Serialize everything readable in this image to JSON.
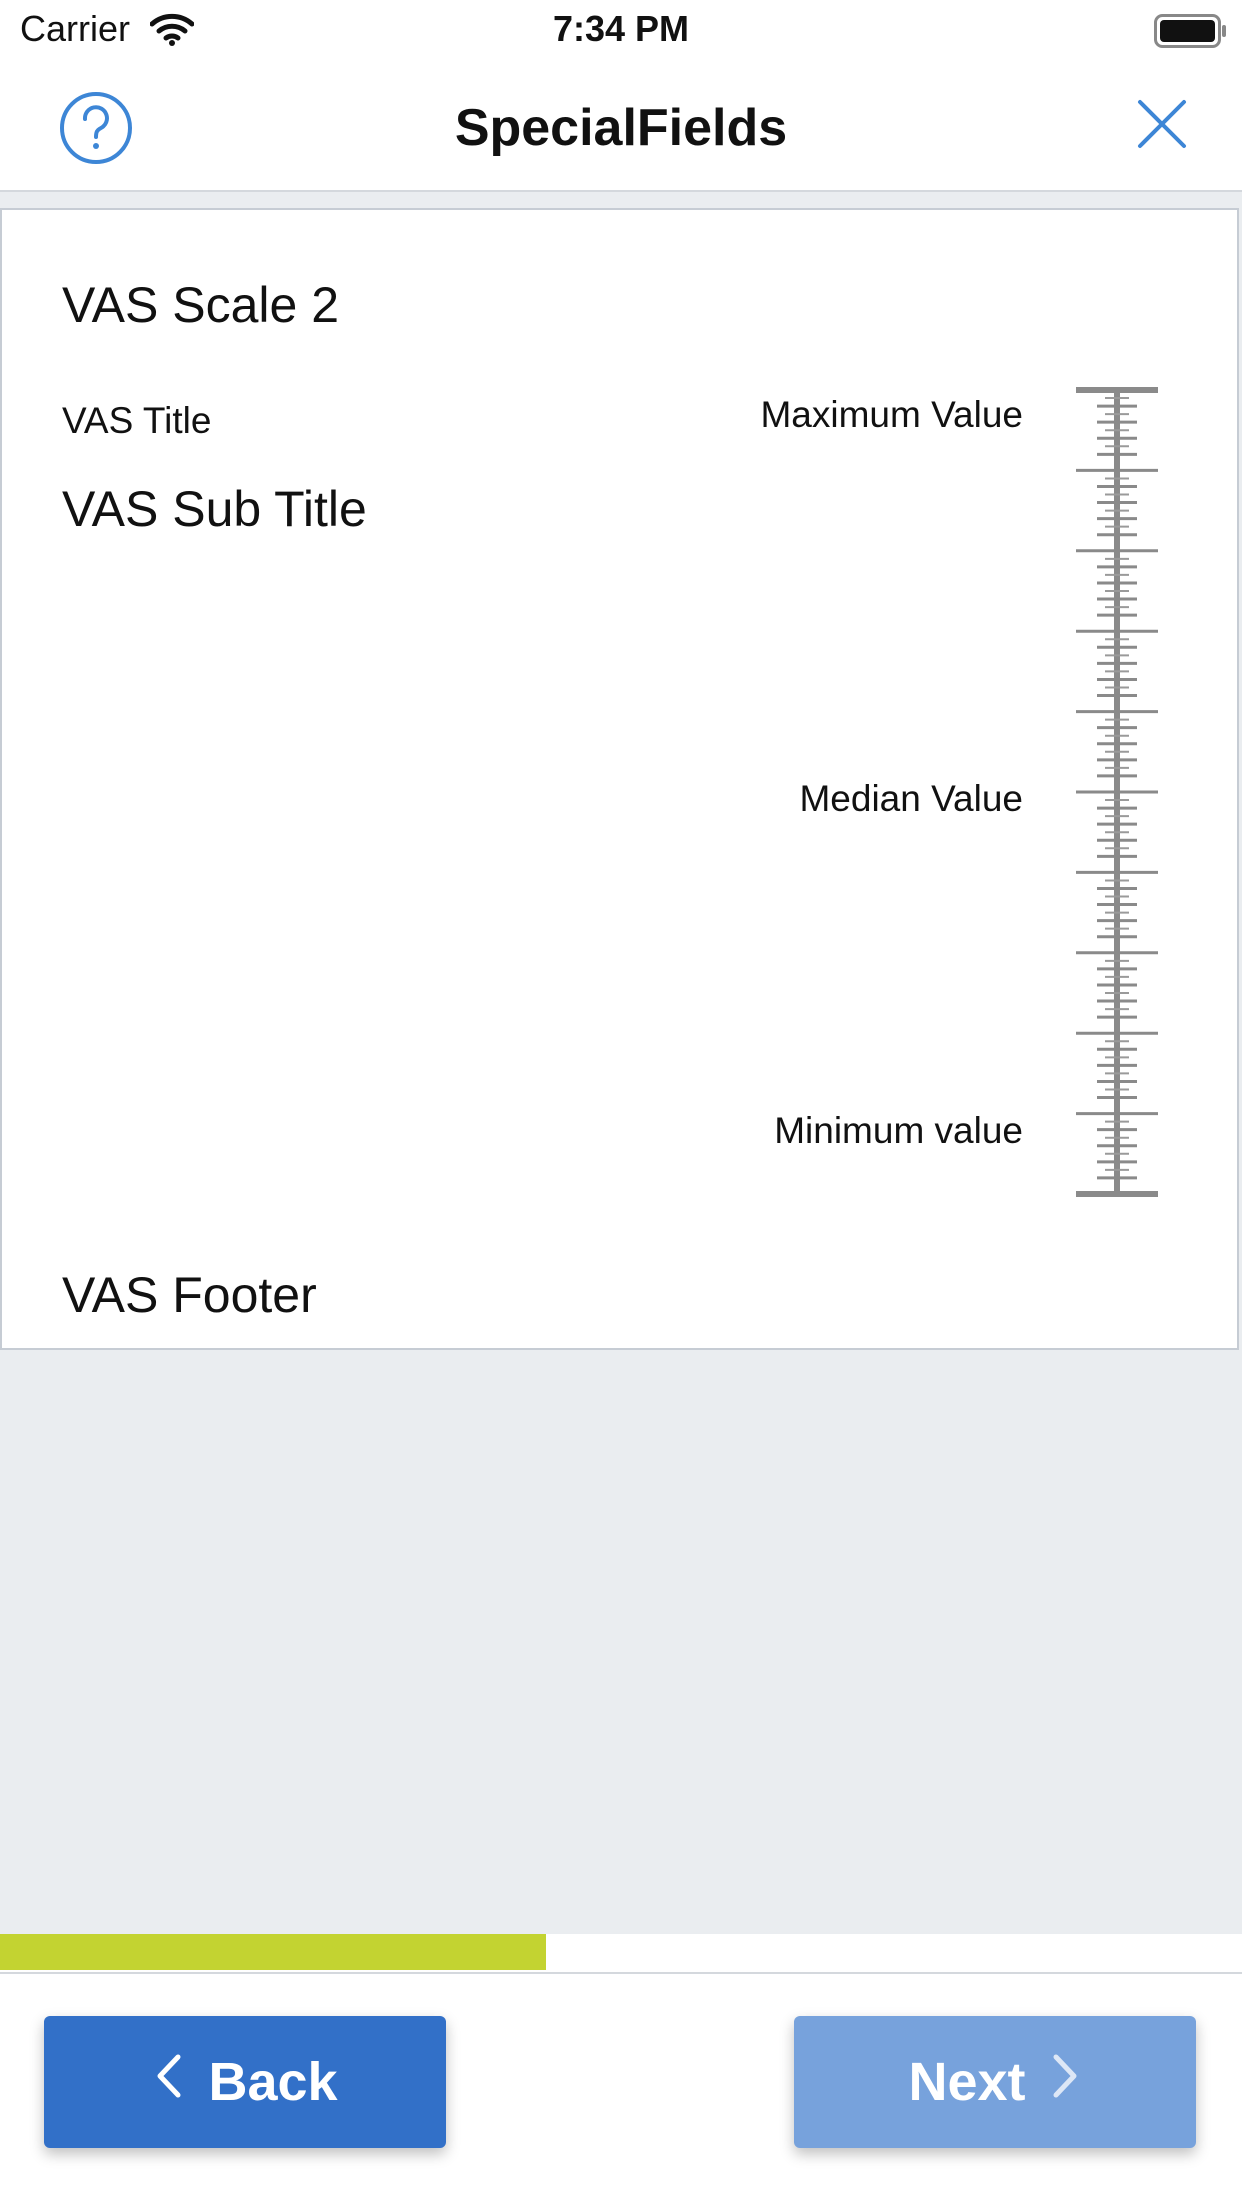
{
  "status_bar": {
    "carrier": "Carrier",
    "time": "7:34 PM"
  },
  "nav": {
    "title": "SpecialFields"
  },
  "question": {
    "title": "VAS Scale 2",
    "vas_title": "VAS Title",
    "vas_subtitle": "VAS Sub Title",
    "footer": "VAS Footer"
  },
  "scale": {
    "max_label": "Maximum Value",
    "median_label": "Median Value",
    "min_label": "Minimum value",
    "orientation": "vertical",
    "major_divisions": 10,
    "minor_per_major": 5
  },
  "progress": {
    "fraction": 0.44,
    "color": "#c3d331"
  },
  "buttons": {
    "back_label": "Back",
    "next_label": "Next"
  },
  "colors": {
    "accent": "#3270c8",
    "accent_disabled": "#77a2dc",
    "background": "#eaedf0"
  }
}
